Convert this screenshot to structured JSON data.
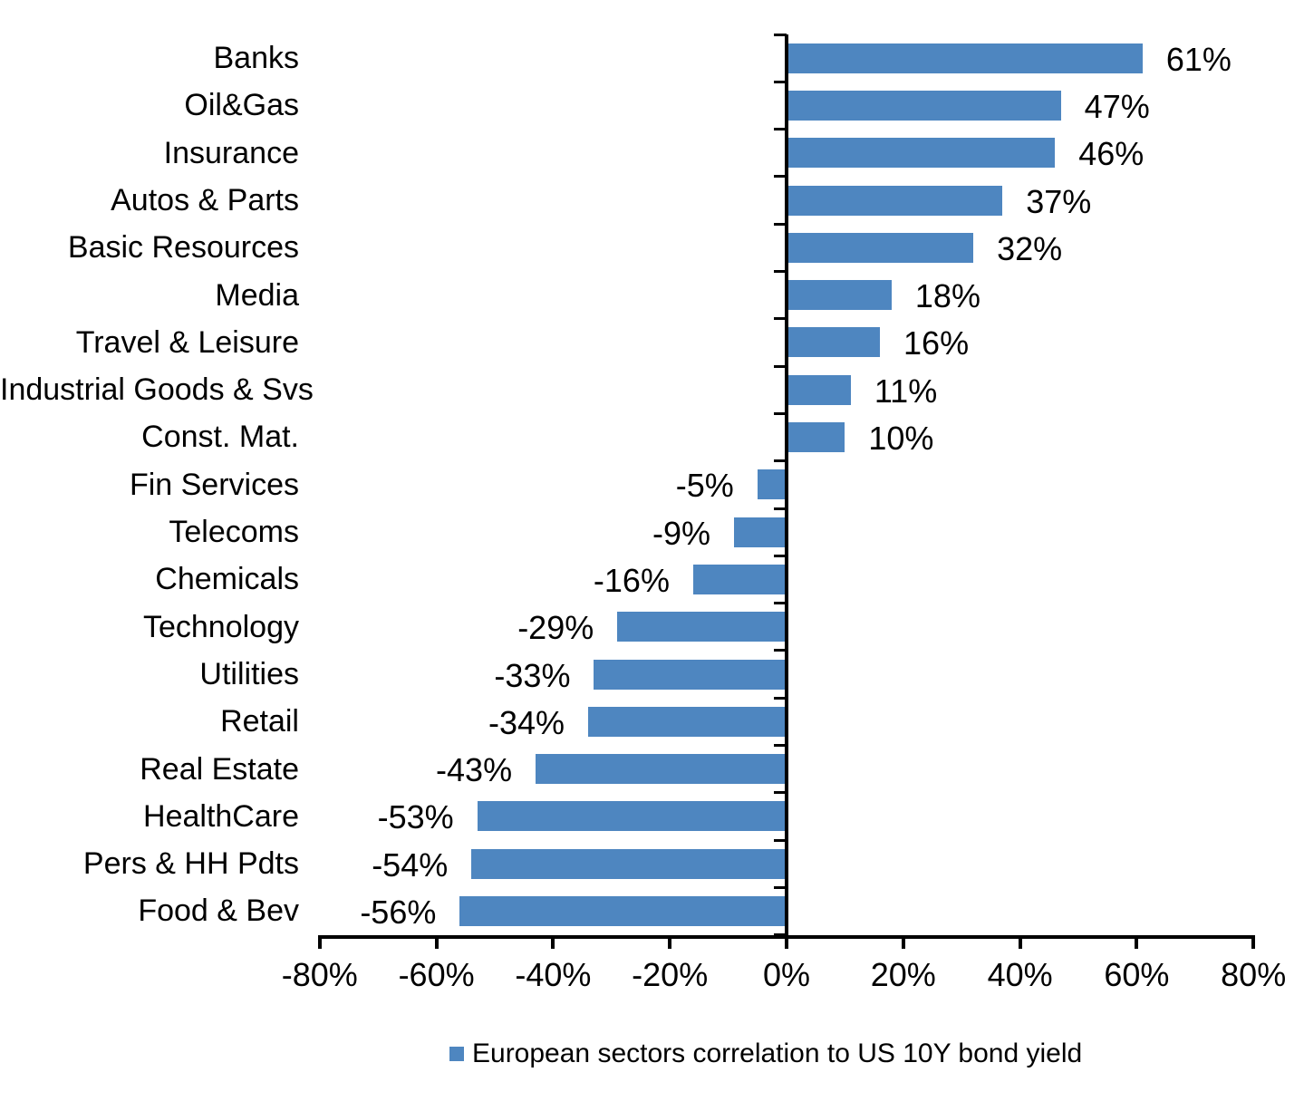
{
  "chart_data": {
    "type": "bar",
    "orientation": "horizontal",
    "title": "",
    "categories": [
      "Banks",
      "Oil&Gas",
      "Insurance",
      "Autos & Parts",
      "Basic Resources",
      "Media",
      "Travel & Leisure",
      "Industrial Goods & Svs",
      "Const. Mat.",
      "Fin Services",
      "Telecoms",
      "Chemicals",
      "Technology",
      "Utilities",
      "Retail",
      "Real Estate",
      "HealthCare",
      "Pers & HH Pdts",
      "Food & Bev"
    ],
    "values": [
      61,
      47,
      46,
      37,
      32,
      18,
      16,
      11,
      10,
      -5,
      -9,
      -16,
      -29,
      -33,
      -34,
      -43,
      -53,
      -54,
      -56
    ],
    "value_labels": [
      "61%",
      "47%",
      "46%",
      "37%",
      "32%",
      "18%",
      "16%",
      "11%",
      "10%",
      "-5%",
      "-9%",
      "-16%",
      "-29%",
      "-33%",
      "-34%",
      "-43%",
      "-53%",
      "-54%",
      "-56%"
    ],
    "xlim": [
      -80,
      80
    ],
    "x_tick_values": [
      -80,
      -60,
      -40,
      -20,
      0,
      20,
      40,
      60,
      80
    ],
    "x_tick_labels": [
      "-80%",
      "-60%",
      "-40%",
      "-20%",
      "0%",
      "20%",
      "40%",
      "60%",
      "80%"
    ],
    "grid": false,
    "legend_position": "bottom",
    "legend_label": "European sectors correlation to US 10Y bond yield",
    "bar_color": "#4E86C0",
    "axis_color": "#000000",
    "text_color": "#000000"
  }
}
